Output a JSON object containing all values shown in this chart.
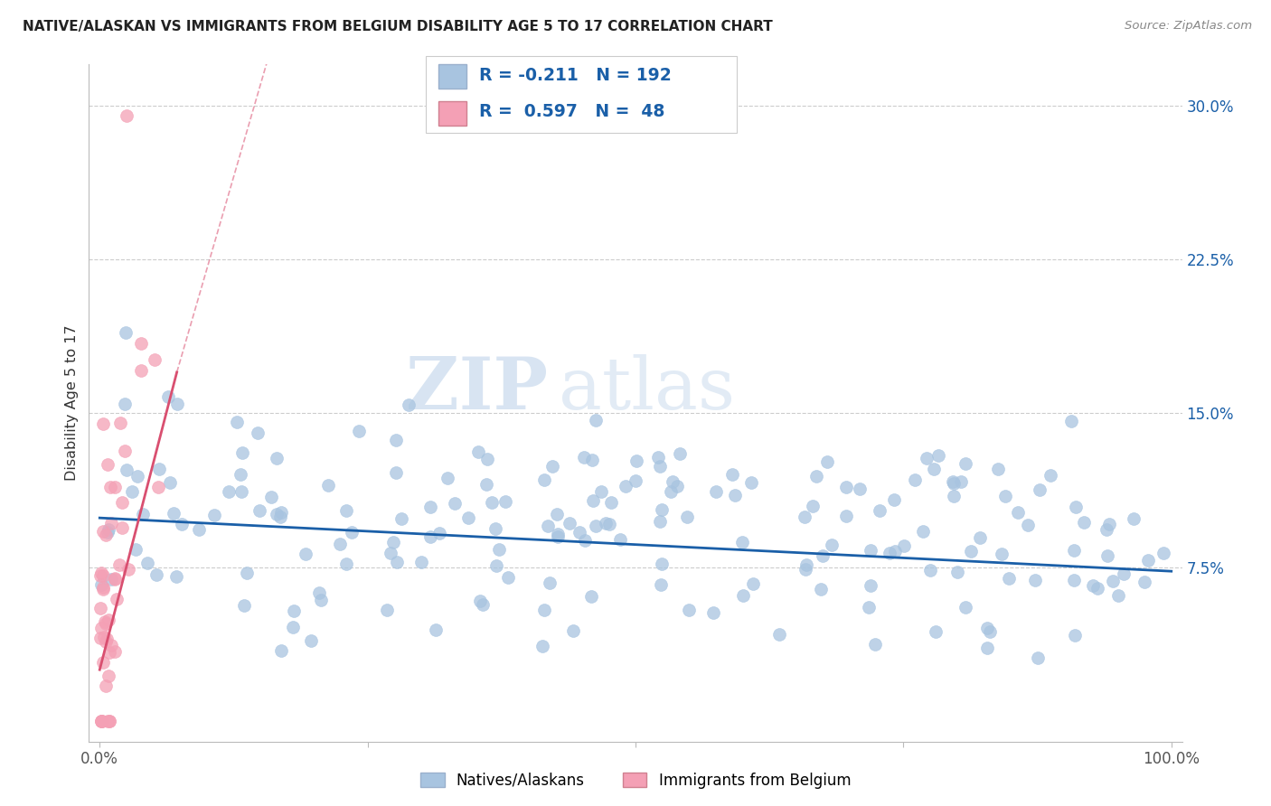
{
  "title": "NATIVE/ALASKAN VS IMMIGRANTS FROM BELGIUM DISABILITY AGE 5 TO 17 CORRELATION CHART",
  "source": "Source: ZipAtlas.com",
  "ylabel": "Disability Age 5 to 17",
  "blue_R": -0.211,
  "blue_N": 192,
  "pink_R": 0.597,
  "pink_N": 48,
  "blue_color": "#a8c4e0",
  "pink_color": "#f4a0b5",
  "blue_line_color": "#1a5fa8",
  "pink_line_color": "#d94f70",
  "blue_label": "Natives/Alaskans",
  "pink_label": "Immigrants from Belgium",
  "xlim": [
    -0.01,
    1.01
  ],
  "ylim": [
    -0.01,
    0.32
  ],
  "yticks": [
    0.075,
    0.15,
    0.225,
    0.3
  ],
  "ytick_labels": [
    "7.5%",
    "15.0%",
    "22.5%",
    "30.0%"
  ],
  "xticks": [
    0.0,
    0.25,
    0.5,
    0.75,
    1.0
  ],
  "xtick_labels": [
    "0.0%",
    "",
    "",
    "",
    "100.0%"
  ],
  "watermark_zip": "ZIP",
  "watermark_atlas": "atlas",
  "background_color": "#ffffff",
  "grid_color": "#cccccc"
}
